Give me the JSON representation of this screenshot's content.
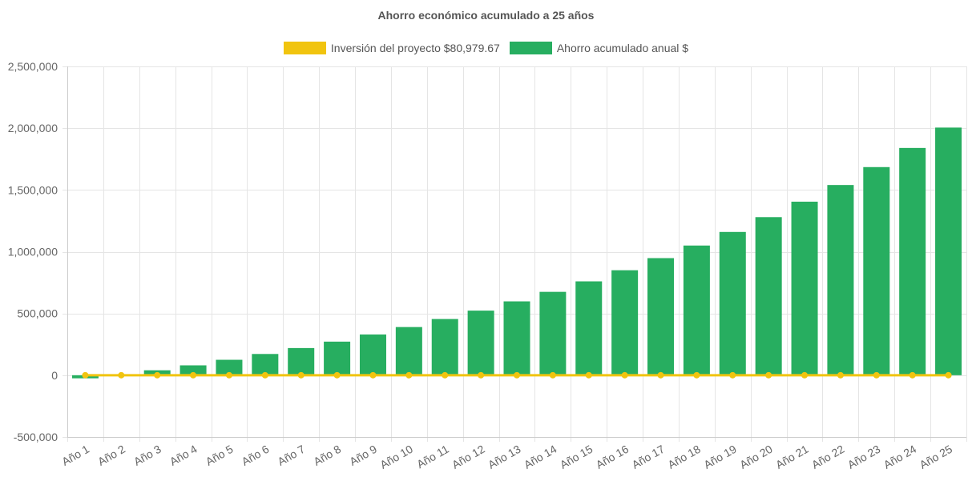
{
  "chart_data": {
    "type": "bar",
    "title": "Ahorro económico acumulado a 25 años",
    "categories": [
      "Año 1",
      "Año 2",
      "Año 3",
      "Año 4",
      "Año 5",
      "Año 6",
      "Año 7",
      "Año 8",
      "Año 9",
      "Año 10",
      "Año 11",
      "Año 12",
      "Año 13",
      "Año 14",
      "Año 15",
      "Año 16",
      "Año 17",
      "Año 18",
      "Año 19",
      "Año 20",
      "Año 21",
      "Año 22",
      "Año 23",
      "Año 24",
      "Año 25"
    ],
    "series": [
      {
        "name": "Inversión del proyecto $80,979.67",
        "type": "line",
        "color": "#f1c40f",
        "values": [
          0,
          0,
          0,
          0,
          0,
          0,
          0,
          0,
          0,
          0,
          0,
          0,
          0,
          0,
          0,
          0,
          0,
          0,
          0,
          0,
          0,
          0,
          0,
          0,
          0
        ]
      },
      {
        "name": "Ahorro acumulado anual $",
        "type": "bar",
        "color": "#27ae60",
        "values": [
          -25000,
          2000,
          40000,
          80000,
          125000,
          172000,
          220000,
          272000,
          330000,
          390000,
          455000,
          523000,
          598000,
          675000,
          760000,
          850000,
          948000,
          1050000,
          1160000,
          1280000,
          1405000,
          1540000,
          1685000,
          1840000,
          2005000
        ]
      }
    ],
    "ylim": [
      -500000,
      2500000
    ],
    "yticks": [
      -500000,
      0,
      500000,
      1000000,
      1500000,
      2000000,
      2500000
    ],
    "ytick_labels": [
      "-500,000",
      "0",
      "500,000",
      "1,000,000",
      "1,500,000",
      "2,000,000",
      "2,500,000"
    ],
    "grid": true,
    "legend_position": "top"
  }
}
